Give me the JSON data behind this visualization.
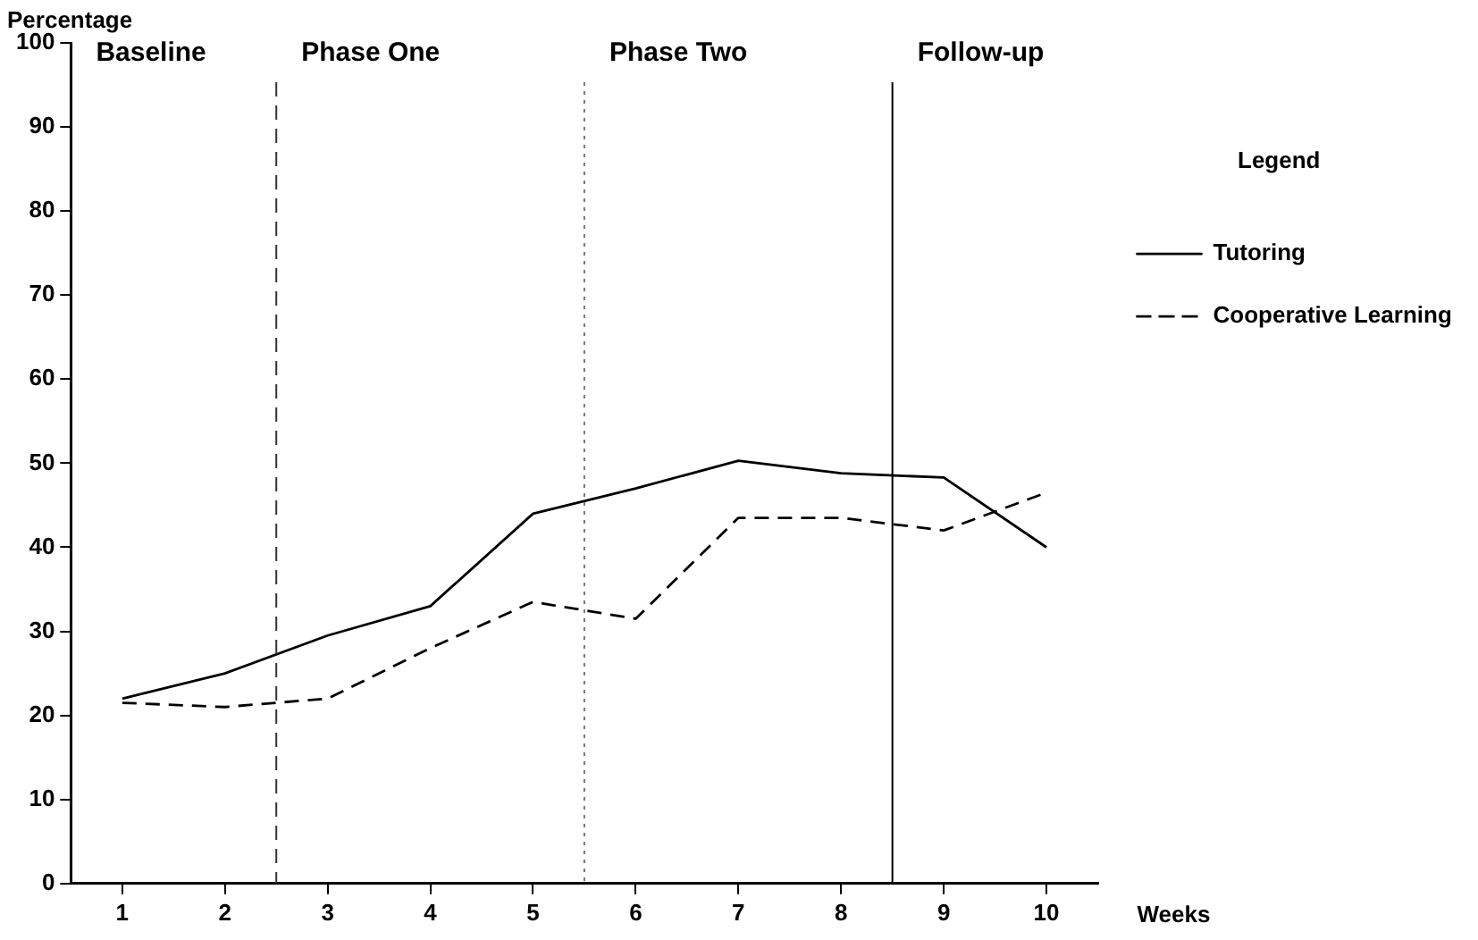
{
  "chart_data": {
    "type": "line",
    "xlabel": "Weeks",
    "ylabel": "Percentage",
    "legend_title": "Legend",
    "legend": "top right",
    "marker": "none",
    "grid": false,
    "x": [
      1,
      2,
      3,
      4,
      5,
      6,
      7,
      8,
      9,
      10
    ],
    "xlim": [
      0.5,
      10.5
    ],
    "xticks": [
      1,
      2,
      3,
      4,
      5,
      6,
      7,
      8,
      9,
      10
    ],
    "ylim": [
      0,
      100
    ],
    "yticks": [
      0,
      10,
      20,
      30,
      40,
      50,
      60,
      70,
      80,
      90,
      100
    ],
    "series": [
      {
        "name": "Tutoring",
        "color": "#000000",
        "line_style": "solid",
        "values": [
          22,
          25,
          29.5,
          33,
          44,
          47,
          50.3,
          48.8,
          48.3,
          40
        ]
      },
      {
        "name": "Cooperative Learning",
        "color": "#000000",
        "line_style": "dashed",
        "values": [
          21.5,
          21,
          22,
          28,
          33.5,
          31.5,
          43.5,
          43.5,
          42,
          46.5
        ]
      }
    ],
    "ref_lines": [
      {
        "axis": "x",
        "value": 2.5,
        "color": "#333333",
        "line_style": "dashed"
      },
      {
        "axis": "x",
        "value": 5.5,
        "color": "#777777",
        "line_style": "dotted"
      },
      {
        "axis": "x",
        "value": 8.5,
        "color": "#000000",
        "line_style": "solid"
      }
    ],
    "annotations": [
      "Baseline",
      "Phase One",
      "Phase Two",
      "Follow-up"
    ]
  }
}
